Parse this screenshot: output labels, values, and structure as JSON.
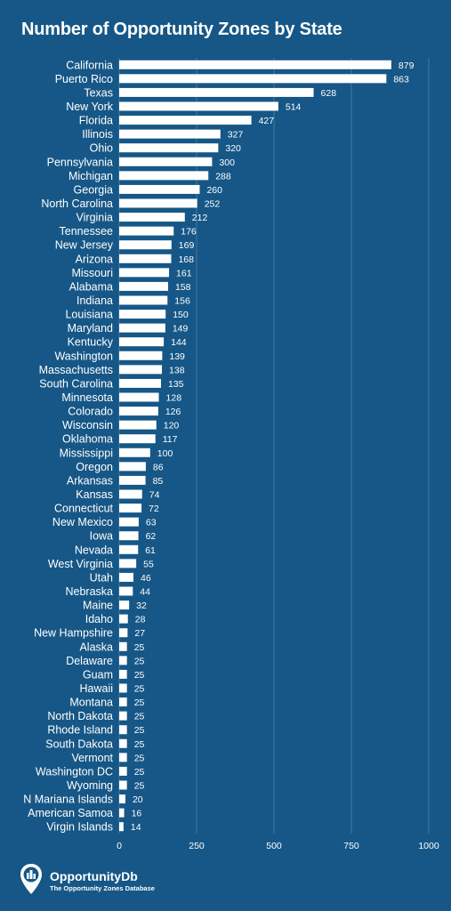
{
  "title": "Number of Opportunity Zones by State",
  "colors": {
    "background": "#165787",
    "bar": "#ffffff",
    "grid": "#3f78a3"
  },
  "chart_data": {
    "type": "bar",
    "orientation": "horizontal",
    "title": "Number of Opportunity Zones by State",
    "xlim": [
      0,
      1000
    ],
    "xticks": [
      0,
      250,
      500,
      750,
      1000
    ],
    "grid": "vertical",
    "categories": [
      "California",
      "Puerto Rico",
      "Texas",
      "New York",
      "Florida",
      "Illinois",
      "Ohio",
      "Pennsylvania",
      "Michigan",
      "Georgia",
      "North Carolina",
      "Virginia",
      "Tennessee",
      "New Jersey",
      "Arizona",
      "Missouri",
      "Alabama",
      "Indiana",
      "Louisiana",
      "Maryland",
      "Kentucky",
      "Washington",
      "Massachusetts",
      "South Carolina",
      "Minnesota",
      "Colorado",
      "Wisconsin",
      "Oklahoma",
      "Mississippi",
      "Oregon",
      "Arkansas",
      "Kansas",
      "Connecticut",
      "New Mexico",
      "Iowa",
      "Nevada",
      "West Virginia",
      "Utah",
      "Nebraska",
      "Maine",
      "Idaho",
      "New Hampshire",
      "Alaska",
      "Delaware",
      "Guam",
      "Hawaii",
      "Montana",
      "North Dakota",
      "Rhode Island",
      "South Dakota",
      "Vermont",
      "Washington DC",
      "Wyoming",
      "N Mariana Islands",
      "American Samoa",
      "Virgin Islands"
    ],
    "values": [
      879,
      863,
      628,
      514,
      427,
      327,
      320,
      300,
      288,
      260,
      252,
      212,
      176,
      169,
      168,
      161,
      158,
      156,
      150,
      149,
      144,
      139,
      138,
      135,
      128,
      126,
      120,
      117,
      100,
      86,
      85,
      74,
      72,
      63,
      62,
      61,
      55,
      46,
      44,
      32,
      28,
      27,
      25,
      25,
      25,
      25,
      25,
      25,
      25,
      25,
      25,
      25,
      25,
      20,
      16,
      14
    ]
  },
  "footer": {
    "brand_name": "OpportunityDb",
    "brand_tagline": "The Opportunity Zones Database",
    "logo_icon": "map-pin-city-icon"
  }
}
